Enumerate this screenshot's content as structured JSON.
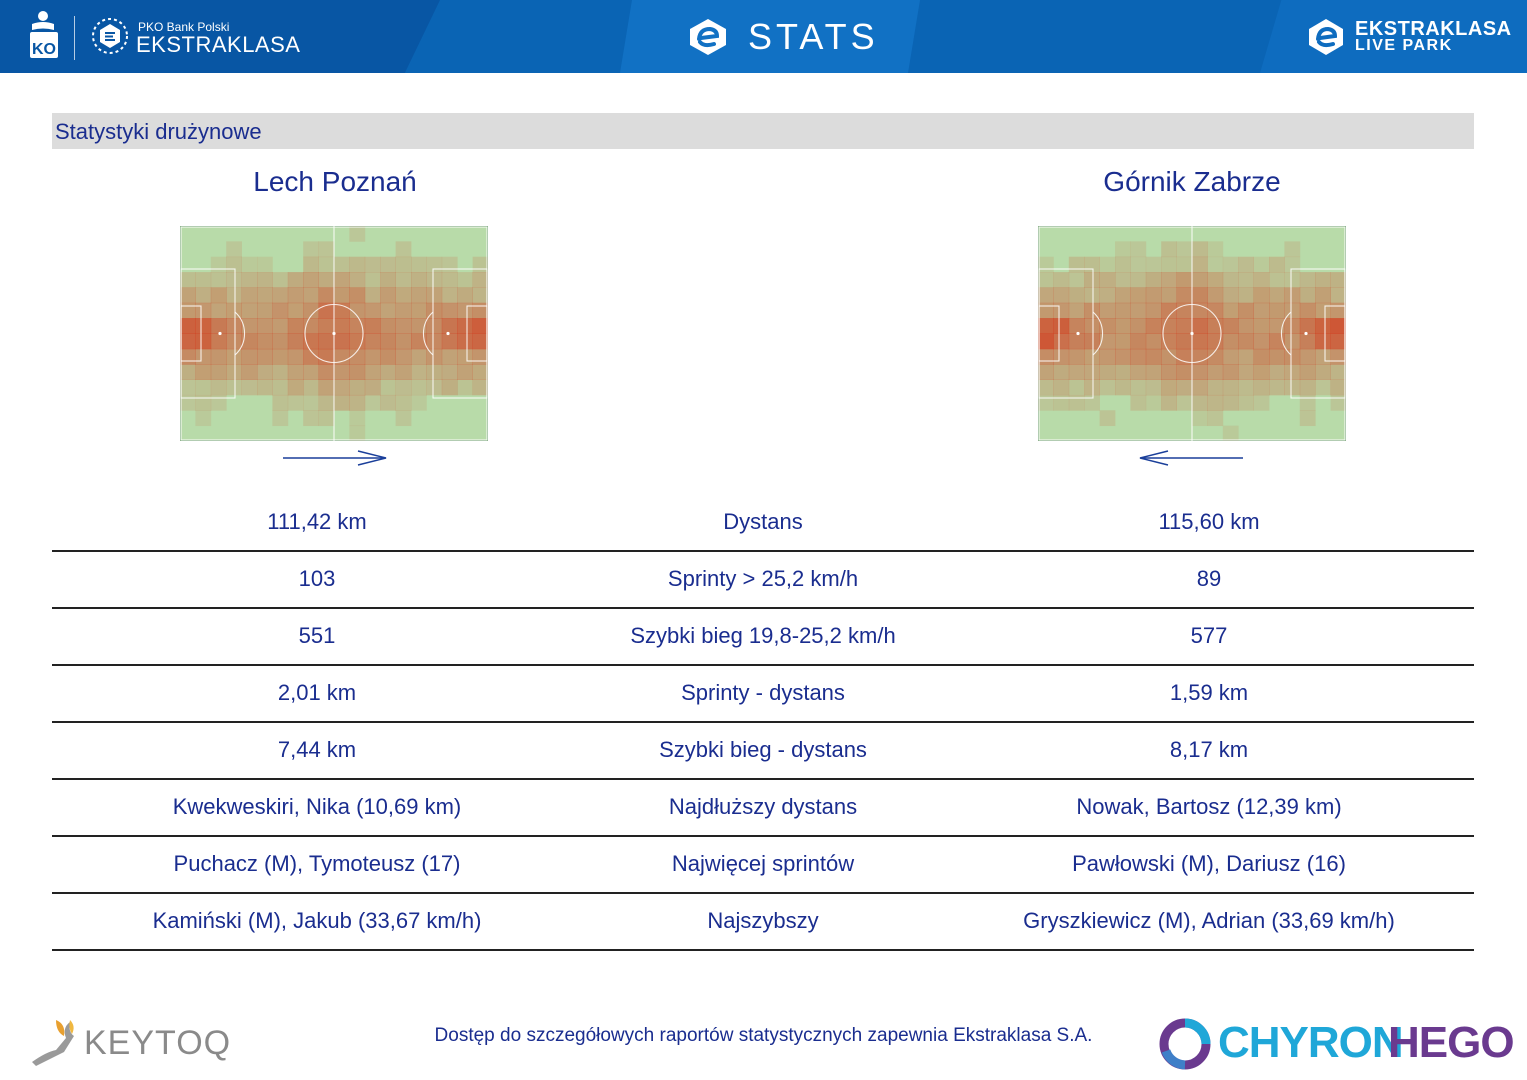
{
  "header": {
    "bank_label": "PKO Bank Polski",
    "league_label": "EKSTRAKLASA",
    "stats_title": "STATS",
    "live_park_line1": "EKSTRAKLASA",
    "live_park_line2": "LIVE PARK"
  },
  "section": {
    "title": "Statystyki drużynowe"
  },
  "teams": {
    "home": {
      "name": "Lech Poznań",
      "attack_direction": "right"
    },
    "away": {
      "name": "Górnik Zabrze",
      "attack_direction": "left"
    }
  },
  "stats": [
    {
      "home": "111,42 km",
      "label": "Dystans",
      "away": "115,60 km"
    },
    {
      "home": "103",
      "label": "Sprinty > 25,2 km/h",
      "away": "89"
    },
    {
      "home": "551",
      "label": "Szybki bieg 19,8-25,2 km/h",
      "away": "577"
    },
    {
      "home": "2,01 km",
      "label": "Sprinty - dystans",
      "away": "1,59 km"
    },
    {
      "home": "7,44 km",
      "label": "Szybki bieg - dystans",
      "away": "8,17 km"
    },
    {
      "home": "Kwekweskiri, Nika (10,69 km)",
      "label": "Najdłuższy dystans",
      "away": "Nowak, Bartosz (12,39 km)"
    },
    {
      "home": "Puchacz (M), Tymoteusz (17)",
      "label": "Najwięcej sprintów",
      "away": "Pawłowski (M), Dariusz (16)"
    },
    {
      "home": "Kamiński (M), Jakub (33,67 km/h)",
      "label": "Najszybszy",
      "away": "Gryszkiewicz (M), Adrian (33,69 km/h)"
    }
  ],
  "footer": {
    "note": "Dostęp do szczegółowych raportów statystycznych zapewnia Ekstraklasa S.A.",
    "keytoq": "KEYTOQ",
    "chyron_part1": "CHYRON",
    "chyron_part2": "HEGO"
  },
  "colors": {
    "header_blue": "#0a64b4",
    "text_navy": "#1a2d8f",
    "pitch_green": "#b5d8a8",
    "heat_red": "#d23c1e"
  }
}
